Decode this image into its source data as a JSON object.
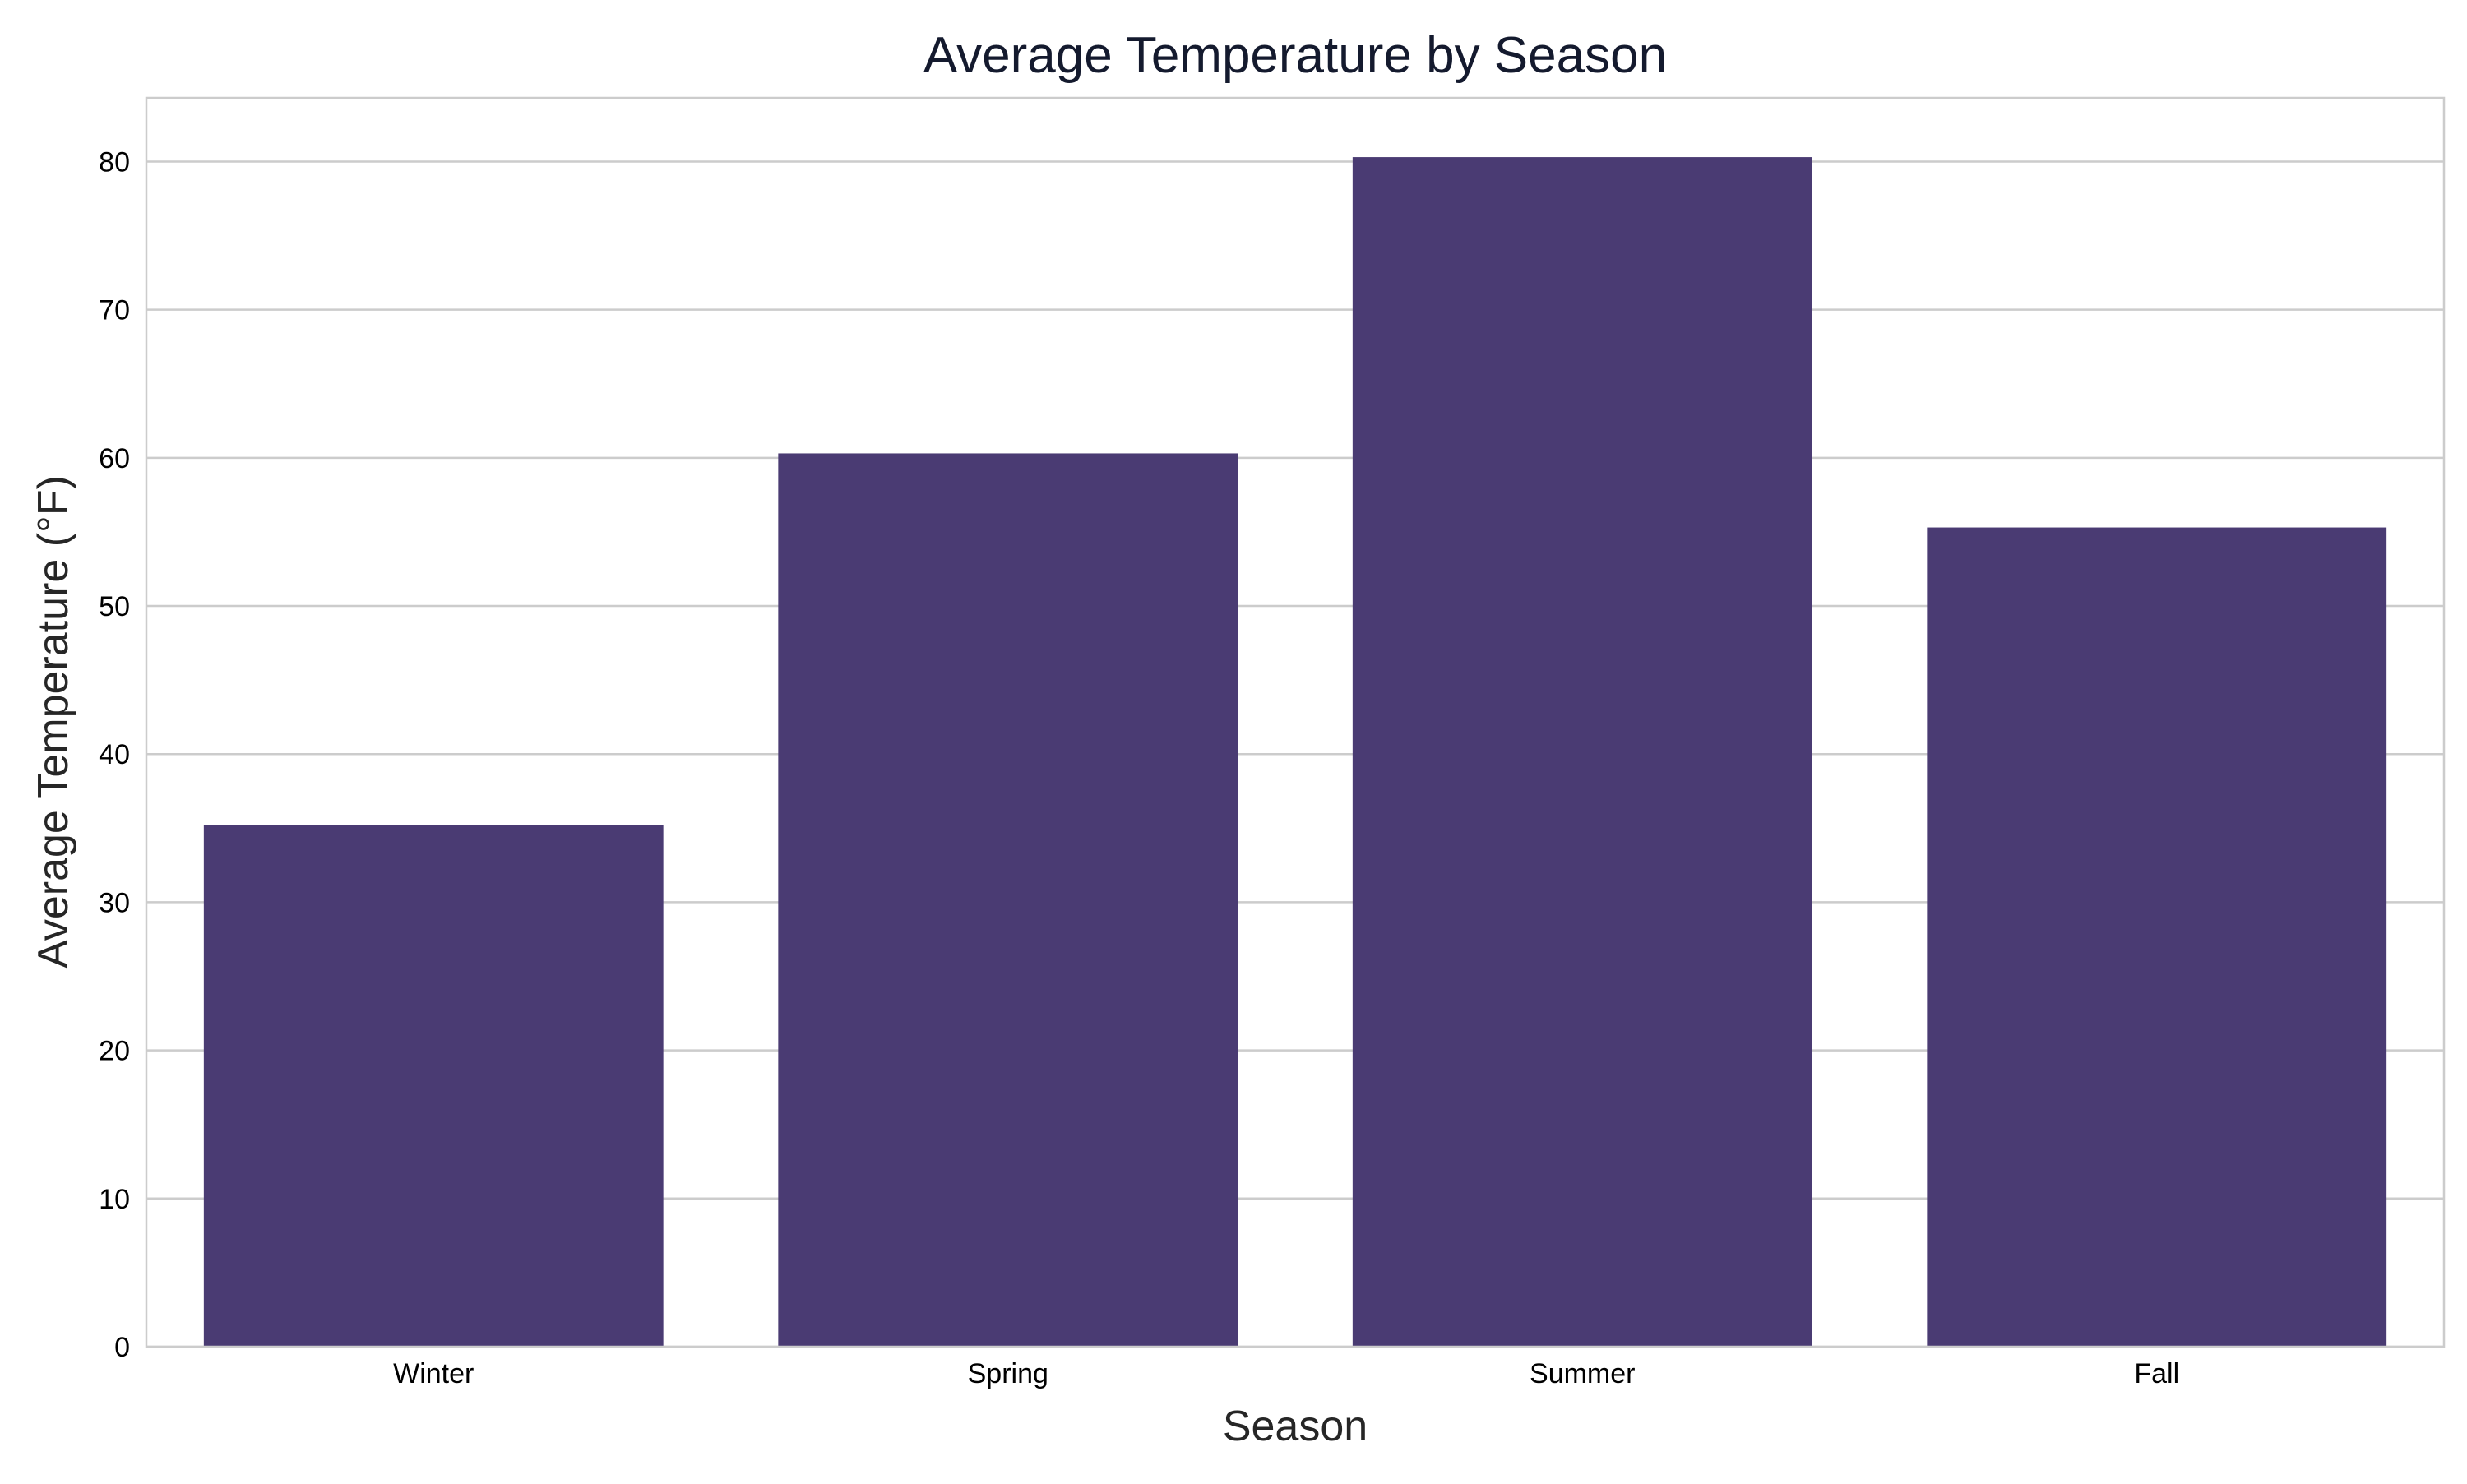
{
  "chart_data": {
    "type": "bar",
    "title": "Average Temperature by Season",
    "xlabel": "Season",
    "ylabel": "Average Temperature (°F)",
    "categories": [
      "Winter",
      "Spring",
      "Summer",
      "Fall"
    ],
    "values": [
      35.2,
      60.3,
      80.3,
      55.3
    ],
    "ylim": [
      0,
      84.3
    ],
    "yticks": [
      0,
      10,
      20,
      30,
      40,
      50,
      60,
      70,
      80
    ],
    "grid": "horizontal",
    "colors": {
      "bar": "#4a3b73",
      "grid": "#cccccc",
      "frame": "#cccccc",
      "title": "#141a2e",
      "label": "#262626",
      "tick": "#000000"
    }
  }
}
